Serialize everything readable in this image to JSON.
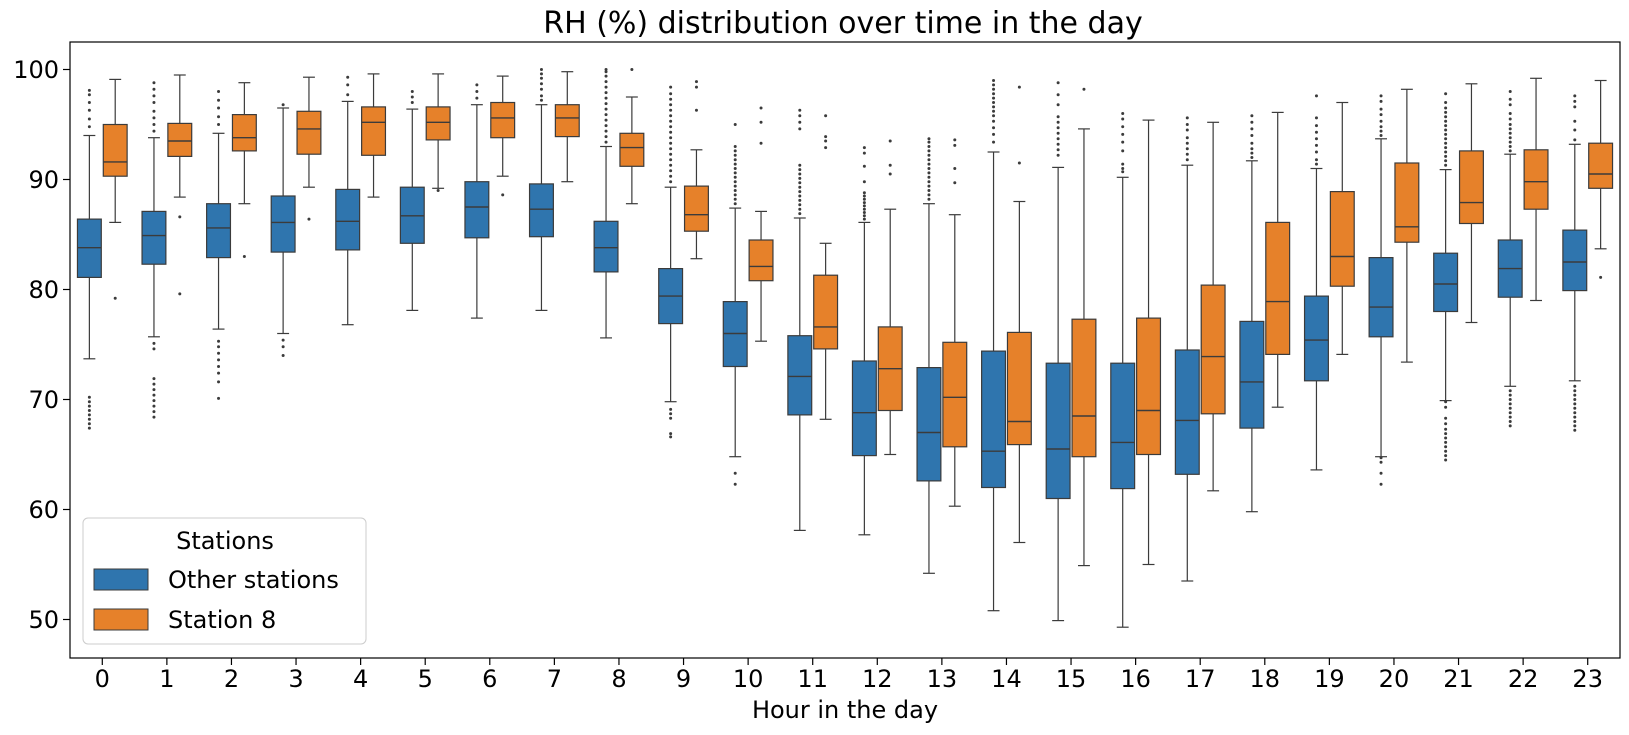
{
  "chart_data": {
    "type": "box",
    "title": "RH (%) distribution over time in the day",
    "xlabel": "Hour in the day",
    "ylabel": "",
    "ylim": [
      46.5,
      102.5
    ],
    "yticks": [
      50,
      60,
      70,
      80,
      90,
      100
    ],
    "categories": [
      "0",
      "1",
      "2",
      "3",
      "4",
      "5",
      "6",
      "7",
      "8",
      "9",
      "10",
      "11",
      "12",
      "13",
      "14",
      "15",
      "16",
      "17",
      "18",
      "19",
      "20",
      "21",
      "22",
      "23"
    ],
    "legend": {
      "title": "Stations",
      "placement": "lower-left"
    },
    "colors": {
      "other": "#2f75ae",
      "station8": "#e6812a",
      "line": "#3b3b3b"
    },
    "series": [
      {
        "name": "Other stations",
        "boxes": [
          {
            "wl": 73.7,
            "q1": 81.1,
            "med": 83.8,
            "q3": 86.4,
            "wh": 94.0,
            "outliers": [
              67.4,
              67.8,
              68.2,
              68.6,
              69.0,
              69.4,
              69.8,
              70.2,
              94.8,
              95.5,
              96.3,
              97.0,
              97.7,
              98.1
            ]
          },
          {
            "wl": 75.7,
            "q1": 82.3,
            "med": 84.9,
            "q3": 87.1,
            "wh": 93.8,
            "outliers": [
              68.4,
              68.9,
              69.4,
              69.9,
              70.4,
              70.9,
              71.4,
              71.9,
              74.6,
              75.1,
              94.4,
              95.0,
              95.6,
              96.2,
              97.0,
              97.6,
              98.2,
              98.8
            ]
          },
          {
            "wl": 76.4,
            "q1": 82.9,
            "med": 85.6,
            "q3": 87.8,
            "wh": 94.2,
            "outliers": [
              70.1,
              71.6,
              72.4,
              73.0,
              73.6,
              74.2,
              74.8,
              75.3,
              95.0,
              95.7,
              96.5,
              97.2,
              98.0
            ]
          },
          {
            "wl": 76.0,
            "q1": 83.4,
            "med": 86.1,
            "q3": 88.5,
            "wh": 96.5,
            "outliers": [
              74.0,
              74.8,
              75.4,
              96.8
            ]
          },
          {
            "wl": 76.8,
            "q1": 83.6,
            "med": 86.2,
            "q3": 89.1,
            "wh": 97.1,
            "outliers": [
              97.7,
              98.6,
              99.3
            ]
          },
          {
            "wl": 78.1,
            "q1": 84.2,
            "med": 86.7,
            "q3": 89.3,
            "wh": 96.4,
            "outliers": [
              97.0,
              97.5,
              98.0
            ]
          },
          {
            "wl": 77.4,
            "q1": 84.7,
            "med": 87.5,
            "q3": 89.8,
            "wh": 96.8,
            "outliers": [
              97.4,
              98.0,
              98.6
            ]
          },
          {
            "wl": 78.1,
            "q1": 84.8,
            "med": 87.3,
            "q3": 89.6,
            "wh": 96.8,
            "outliers": [
              97.2,
              97.6,
              98.2,
              98.7,
              99.2,
              99.6,
              100.0
            ]
          },
          {
            "wl": 75.6,
            "q1": 81.6,
            "med": 83.8,
            "q3": 86.2,
            "wh": 93.0,
            "outliers": [
              93.4,
              93.9,
              94.4,
              94.9,
              95.4,
              95.9,
              96.4,
              96.9,
              97.4,
              97.9,
              98.4,
              98.9,
              99.4,
              99.8,
              100.0
            ]
          },
          {
            "wl": 69.8,
            "q1": 76.9,
            "med": 79.4,
            "q3": 81.9,
            "wh": 89.3,
            "outliers": [
              66.6,
              66.9,
              68.3,
              68.7,
              69.1,
              89.8,
              90.3,
              90.8,
              91.3,
              91.8,
              92.3,
              92.8,
              93.3,
              93.8,
              94.3,
              94.8,
              95.3,
              95.8,
              96.3,
              96.8,
              97.3,
              97.8,
              98.4
            ]
          },
          {
            "wl": 64.8,
            "q1": 73.0,
            "med": 76.0,
            "q3": 78.9,
            "wh": 87.4,
            "outliers": [
              62.3,
              63.3,
              87.8,
              88.2,
              88.6,
              89.0,
              89.4,
              89.8,
              90.2,
              90.6,
              91.0,
              91.4,
              91.8,
              92.2,
              92.6,
              93.0,
              95.0
            ]
          },
          {
            "wl": 58.1,
            "q1": 68.6,
            "med": 72.1,
            "q3": 75.8,
            "wh": 86.5,
            "outliers": [
              86.9,
              87.3,
              87.7,
              88.1,
              88.5,
              88.9,
              89.3,
              89.7,
              90.1,
              90.5,
              90.9,
              91.3,
              94.6,
              95.2,
              95.8,
              96.3
            ]
          },
          {
            "wl": 57.7,
            "q1": 64.9,
            "med": 68.8,
            "q3": 73.5,
            "wh": 86.1,
            "outliers": [
              86.4,
              86.7,
              87.0,
              87.3,
              87.6,
              87.9,
              88.2,
              88.5,
              88.8,
              89.8,
              91.2,
              92.4,
              92.9
            ]
          },
          {
            "wl": 54.2,
            "q1": 62.6,
            "med": 67.0,
            "q3": 72.9,
            "wh": 87.8,
            "outliers": [
              88.2,
              88.6,
              89.0,
              89.4,
              89.8,
              90.2,
              90.6,
              91.0,
              91.4,
              91.8,
              92.2,
              92.6,
              93.0,
              93.4,
              93.7
            ]
          },
          {
            "wl": 50.8,
            "q1": 62.0,
            "med": 65.3,
            "q3": 74.4,
            "wh": 92.5,
            "outliers": [
              93.4,
              94.1,
              94.7,
              95.3,
              95.8,
              96.2,
              96.6,
              97.0,
              97.4,
              97.8,
              98.2,
              98.6,
              99.0
            ]
          },
          {
            "wl": 49.9,
            "q1": 61.0,
            "med": 65.5,
            "q3": 73.3,
            "wh": 91.1,
            "outliers": [
              92.2,
              92.7,
              93.2,
              93.7,
              94.2,
              94.7,
              95.2,
              95.7,
              96.8,
              97.7,
              98.8
            ]
          },
          {
            "wl": 49.3,
            "q1": 61.9,
            "med": 66.1,
            "q3": 73.3,
            "wh": 90.2,
            "outliers": [
              90.7,
              91.0,
              91.4,
              92.6,
              93.4,
              94.1,
              94.8,
              95.5,
              96.0
            ]
          },
          {
            "wl": 53.5,
            "q1": 63.2,
            "med": 68.1,
            "q3": 74.5,
            "wh": 91.3,
            "outliers": [
              91.8,
              92.3,
              92.8,
              93.3,
              93.8,
              94.5,
              95.0,
              95.6
            ]
          },
          {
            "wl": 59.8,
            "q1": 67.4,
            "med": 71.6,
            "q3": 77.1,
            "wh": 91.7,
            "outliers": [
              92.0,
              92.4,
              92.8,
              93.3,
              94.0,
              94.6,
              95.2,
              95.8
            ]
          },
          {
            "wl": 63.6,
            "q1": 71.7,
            "med": 75.4,
            "q3": 79.4,
            "wh": 91.0,
            "outliers": [
              91.4,
              91.8,
              92.5,
              93.1,
              93.7,
              94.3,
              94.9,
              95.6,
              97.6
            ]
          },
          {
            "wl": 64.8,
            "q1": 75.7,
            "med": 78.4,
            "q3": 82.9,
            "wh": 93.7,
            "outliers": [
              62.3,
              63.3,
              64.3,
              64.7,
              94.0,
              94.4,
              94.8,
              95.3,
              95.9,
              96.4,
              97.1,
              97.6
            ]
          },
          {
            "wl": 69.9,
            "q1": 78.0,
            "med": 80.5,
            "q3": 83.3,
            "wh": 90.9,
            "outliers": [
              64.5,
              64.9,
              65.3,
              65.7,
              66.1,
              66.5,
              66.9,
              67.3,
              67.8,
              68.3,
              69.3,
              69.8,
              91.3,
              91.7,
              92.1,
              92.5,
              92.9,
              93.3,
              93.7,
              94.1,
              94.5,
              94.9,
              95.3,
              95.7,
              96.1,
              96.5,
              97.0,
              97.8
            ]
          },
          {
            "wl": 71.2,
            "q1": 79.3,
            "med": 81.9,
            "q3": 84.5,
            "wh": 92.3,
            "outliers": [
              67.6,
              68.0,
              68.4,
              68.8,
              69.2,
              69.6,
              70.0,
              70.4,
              70.8,
              92.6,
              93.0,
              93.4,
              93.8,
              94.2,
              94.6,
              95.0,
              95.5,
              96.0,
              96.8,
              97.3,
              98.0
            ]
          },
          {
            "wl": 71.7,
            "q1": 79.9,
            "med": 82.5,
            "q3": 85.4,
            "wh": 93.2,
            "outliers": [
              67.2,
              67.6,
              68.0,
              68.4,
              68.8,
              69.2,
              69.6,
              70.0,
              70.4,
              70.8,
              71.2,
              93.6,
              94.5,
              95.3,
              96.6,
              97.1,
              97.6
            ]
          }
        ]
      },
      {
        "name": "Station 8",
        "boxes": [
          {
            "wl": 86.1,
            "q1": 90.3,
            "med": 91.6,
            "q3": 95.0,
            "wh": 99.1,
            "outliers": [
              79.2
            ]
          },
          {
            "wl": 88.4,
            "q1": 92.1,
            "med": 93.5,
            "q3": 95.1,
            "wh": 99.5,
            "outliers": [
              79.6,
              86.6
            ]
          },
          {
            "wl": 87.8,
            "q1": 92.6,
            "med": 93.8,
            "q3": 95.9,
            "wh": 98.8,
            "outliers": [
              83.0
            ]
          },
          {
            "wl": 89.3,
            "q1": 92.3,
            "med": 94.6,
            "q3": 96.2,
            "wh": 99.3,
            "outliers": [
              86.4
            ]
          },
          {
            "wl": 88.4,
            "q1": 92.2,
            "med": 95.2,
            "q3": 96.6,
            "wh": 99.6,
            "outliers": []
          },
          {
            "wl": 89.2,
            "q1": 93.6,
            "med": 95.2,
            "q3": 96.6,
            "wh": 99.6,
            "outliers": [
              89.0
            ]
          },
          {
            "wl": 90.3,
            "q1": 93.8,
            "med": 95.6,
            "q3": 97.0,
            "wh": 99.4,
            "outliers": [
              88.6
            ]
          },
          {
            "wl": 89.8,
            "q1": 93.9,
            "med": 95.6,
            "q3": 96.8,
            "wh": 99.8,
            "outliers": []
          },
          {
            "wl": 87.8,
            "q1": 91.2,
            "med": 92.9,
            "q3": 94.2,
            "wh": 97.5,
            "outliers": [
              100.0
            ]
          },
          {
            "wl": 82.8,
            "q1": 85.3,
            "med": 86.8,
            "q3": 89.4,
            "wh": 92.7,
            "outliers": [
              96.3,
              98.4,
              98.9
            ]
          },
          {
            "wl": 75.3,
            "q1": 80.8,
            "med": 82.1,
            "q3": 84.5,
            "wh": 87.1,
            "outliers": [
              93.3,
              95.2,
              96.5
            ]
          },
          {
            "wl": 68.2,
            "q1": 74.6,
            "med": 76.6,
            "q3": 81.3,
            "wh": 84.2,
            "outliers": [
              92.9,
              93.5,
              93.9,
              95.8
            ]
          },
          {
            "wl": 65.0,
            "q1": 69.0,
            "med": 72.8,
            "q3": 76.6,
            "wh": 87.3,
            "outliers": [
              90.5,
              91.3,
              93.5
            ]
          },
          {
            "wl": 60.3,
            "q1": 65.7,
            "med": 70.2,
            "q3": 75.2,
            "wh": 86.8,
            "outliers": [
              89.7,
              91.0,
              93.1,
              93.6
            ]
          },
          {
            "wl": 57.0,
            "q1": 65.9,
            "med": 68.0,
            "q3": 76.1,
            "wh": 88.0,
            "outliers": [
              91.5,
              98.4
            ]
          },
          {
            "wl": 54.9,
            "q1": 64.8,
            "med": 68.5,
            "q3": 77.3,
            "wh": 94.6,
            "outliers": [
              98.2
            ]
          },
          {
            "wl": 55.0,
            "q1": 65.0,
            "med": 69.0,
            "q3": 77.4,
            "wh": 95.4,
            "outliers": []
          },
          {
            "wl": 61.7,
            "q1": 68.7,
            "med": 73.9,
            "q3": 80.4,
            "wh": 95.2,
            "outliers": []
          },
          {
            "wl": 69.3,
            "q1": 74.1,
            "med": 78.9,
            "q3": 86.1,
            "wh": 96.1,
            "outliers": []
          },
          {
            "wl": 74.1,
            "q1": 80.3,
            "med": 83.0,
            "q3": 88.9,
            "wh": 97.0,
            "outliers": []
          },
          {
            "wl": 73.4,
            "q1": 84.3,
            "med": 85.7,
            "q3": 91.5,
            "wh": 98.2,
            "outliers": []
          },
          {
            "wl": 77.0,
            "q1": 86.0,
            "med": 87.9,
            "q3": 92.6,
            "wh": 98.7,
            "outliers": []
          },
          {
            "wl": 79.0,
            "q1": 87.3,
            "med": 89.8,
            "q3": 92.7,
            "wh": 99.2,
            "outliers": []
          },
          {
            "wl": 83.7,
            "q1": 89.2,
            "med": 90.5,
            "q3": 93.3,
            "wh": 99.0,
            "outliers": [
              81.1
            ]
          }
        ]
      }
    ]
  }
}
